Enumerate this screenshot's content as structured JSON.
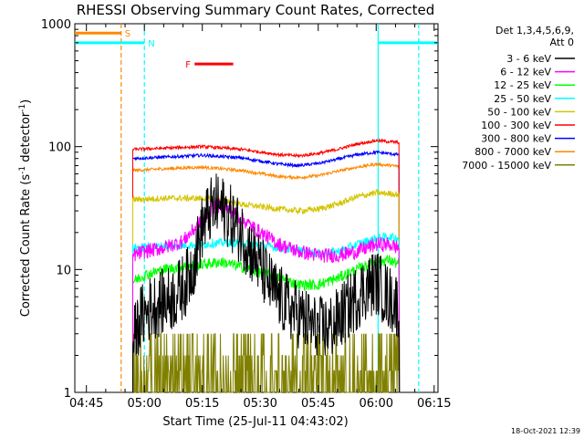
{
  "chart_data": {
    "type": "line",
    "title": "RHESSI Observing Summary Count Rates, Corrected",
    "xlabel": "Start Time (25-Jul-11 04:43:02)",
    "ylabel_main": "Corrected Count Rate (s",
    "ylabel_exp1": "-1",
    "ylabel_mid": " detector",
    "ylabel_exp2": "-1",
    "ylabel_end": ")",
    "y_scale": "log",
    "ylim": [
      1,
      1000
    ],
    "xlim_minutes": [
      -3,
      91
    ],
    "x_ticks": [
      {
        "minute": 0,
        "label": "04:45"
      },
      {
        "minute": 15,
        "label": "05:00"
      },
      {
        "minute": 30,
        "label": "05:15"
      },
      {
        "minute": 45,
        "label": "05:30"
      },
      {
        "minute": 60,
        "label": "05:45"
      },
      {
        "minute": 75,
        "label": "06:00"
      },
      {
        "minute": 90,
        "label": "06:15"
      }
    ],
    "y_ticks": [
      {
        "value": 1,
        "label": "1"
      },
      {
        "value": 10,
        "label": "10"
      },
      {
        "value": 100,
        "label": "100"
      },
      {
        "value": 1000,
        "label": "1000"
      }
    ],
    "legend_header": [
      "Det 1,3,4,5,6,9,",
      "Att 0"
    ],
    "series": [
      {
        "name": "3 - 6 keV",
        "color": "#000000",
        "t": [
          12,
          14,
          17,
          20,
          23,
          26,
          28,
          30,
          32,
          34,
          36,
          40,
          44,
          48,
          52,
          56,
          60,
          64,
          68,
          72,
          75,
          78,
          81
        ],
        "v": [
          2.5,
          4,
          5,
          5.5,
          6,
          8,
          12,
          22,
          30,
          33,
          30,
          20,
          12,
          7,
          5,
          4,
          3.2,
          3.5,
          5,
          7,
          8,
          6,
          5
        ]
      },
      {
        "name": "6 - 12 keV",
        "color": "#ff00ff",
        "t": [
          12,
          15,
          20,
          25,
          30,
          33,
          36,
          40,
          45,
          50,
          55,
          60,
          65,
          70,
          75,
          78,
          81
        ],
        "v": [
          13,
          14,
          15,
          17,
          25,
          33,
          32,
          26,
          20,
          16,
          14,
          13,
          13,
          14,
          16,
          16,
          15
        ]
      },
      {
        "name": "12 - 25 keV",
        "color": "#00ff00",
        "t": [
          12,
          15,
          20,
          25,
          30,
          35,
          40,
          45,
          50,
          55,
          60,
          65,
          70,
          75,
          78,
          81
        ],
        "v": [
          8,
          9,
          10,
          10.5,
          11,
          11.5,
          10.5,
          9.5,
          8.5,
          7.5,
          7.5,
          8.5,
          10,
          11.5,
          12,
          11
        ]
      },
      {
        "name": "25 - 50 keV",
        "color": "#00ffff",
        "t": [
          12,
          20,
          30,
          35,
          40,
          50,
          60,
          65,
          70,
          75,
          78,
          81
        ],
        "v": [
          15,
          15.5,
          16,
          16.5,
          16.5,
          15,
          13.5,
          14,
          16,
          18,
          18.5,
          18
        ]
      },
      {
        "name": "50 - 100 keV",
        "color": "#d4c400",
        "t": [
          12,
          20,
          30,
          35,
          40,
          50,
          55,
          60,
          65,
          70,
          75,
          81
        ],
        "v": [
          37,
          38,
          38,
          37,
          34,
          31,
          30,
          31,
          34,
          39,
          42,
          41
        ]
      },
      {
        "name": "100 - 300 keV",
        "color": "#ff0000",
        "t": [
          12,
          20,
          30,
          40,
          50,
          55,
          60,
          65,
          70,
          75,
          81
        ],
        "v": [
          95,
          97,
          100,
          95,
          86,
          84,
          88,
          95,
          105,
          112,
          108
        ]
      },
      {
        "name": "300 - 800 keV",
        "color": "#0000ff",
        "t": [
          12,
          20,
          30,
          40,
          50,
          55,
          60,
          65,
          70,
          75,
          81
        ],
        "v": [
          80,
          82,
          85,
          81,
          72,
          70,
          73,
          79,
          86,
          90,
          86
        ]
      },
      {
        "name": "800 - 7000 keV",
        "color": "#ff8800",
        "t": [
          12,
          20,
          30,
          40,
          50,
          55,
          60,
          65,
          70,
          75,
          81
        ],
        "v": [
          64,
          66,
          68,
          64,
          57,
          56,
          58,
          63,
          68,
          72,
          69
        ]
      },
      {
        "name": "7000 - 15000 keV",
        "color": "#808000",
        "t": [
          12,
          18,
          24,
          30,
          36,
          42,
          48,
          54,
          60,
          66,
          72,
          78,
          81
        ],
        "v": [
          1.5,
          1.6,
          1.5,
          1.7,
          1.6,
          1.4,
          1.3,
          1.3,
          1.6,
          1.8,
          1.7,
          1.9,
          1.8
        ]
      }
    ],
    "flags": [
      {
        "label": "S",
        "color": "#ff8800",
        "start": -3,
        "end": 9,
        "level": 840
      },
      {
        "label": "N",
        "color": "#00ffff",
        "start": -3,
        "end": 15,
        "level": 700
      },
      {
        "label": "F",
        "color": "#ff0000",
        "start": 28,
        "end": 38,
        "level": 470
      },
      {
        "label": "",
        "color": "#00ffff",
        "start": 75.5,
        "end": 91,
        "level": 700
      }
    ],
    "vlines": [
      {
        "minute": 9,
        "color": "#ff8800",
        "style": "dashed"
      },
      {
        "minute": 15,
        "color": "#00ffff",
        "style": "dashed"
      },
      {
        "minute": 75.5,
        "color": "#00ffff",
        "style": "solid"
      },
      {
        "minute": 86,
        "color": "#00ffff",
        "style": "dashed"
      }
    ],
    "footer_date": "18-Oct-2021 12:39"
  }
}
